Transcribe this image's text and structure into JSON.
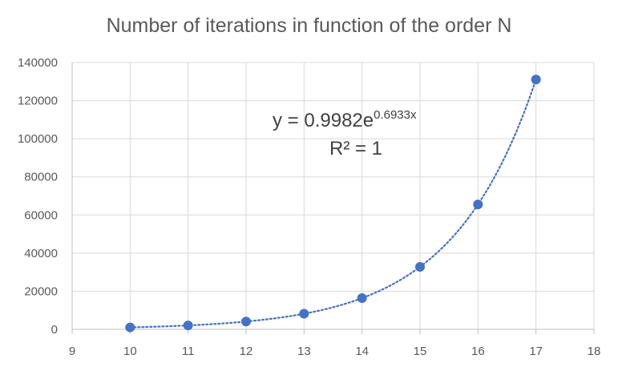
{
  "chart_data": {
    "type": "scatter",
    "title": "Number of iterations in function of the order N",
    "xlabel": "",
    "ylabel": "",
    "xlim": [
      9,
      18
    ],
    "ylim": [
      0,
      140000
    ],
    "x_ticks": [
      9,
      10,
      11,
      12,
      13,
      14,
      15,
      16,
      17,
      18
    ],
    "y_ticks": [
      0,
      20000,
      40000,
      60000,
      80000,
      100000,
      120000,
      140000
    ],
    "grid": true,
    "series": [
      {
        "x": [
          10,
          11,
          12,
          13,
          14,
          15,
          16,
          17
        ],
        "y": [
          1024,
          2048,
          4096,
          8192,
          16384,
          32768,
          65536,
          131072
        ],
        "color": "#4472C4",
        "marker": "circle"
      }
    ],
    "trendline": {
      "type": "exponential",
      "a": 0.9982,
      "b": 0.6933,
      "style": "dotted",
      "color": "#4472C4",
      "equation_prefix": "y = 0.9982e",
      "equation_exponent": "0.6933x",
      "r_squared_label": "R² = 1"
    }
  }
}
